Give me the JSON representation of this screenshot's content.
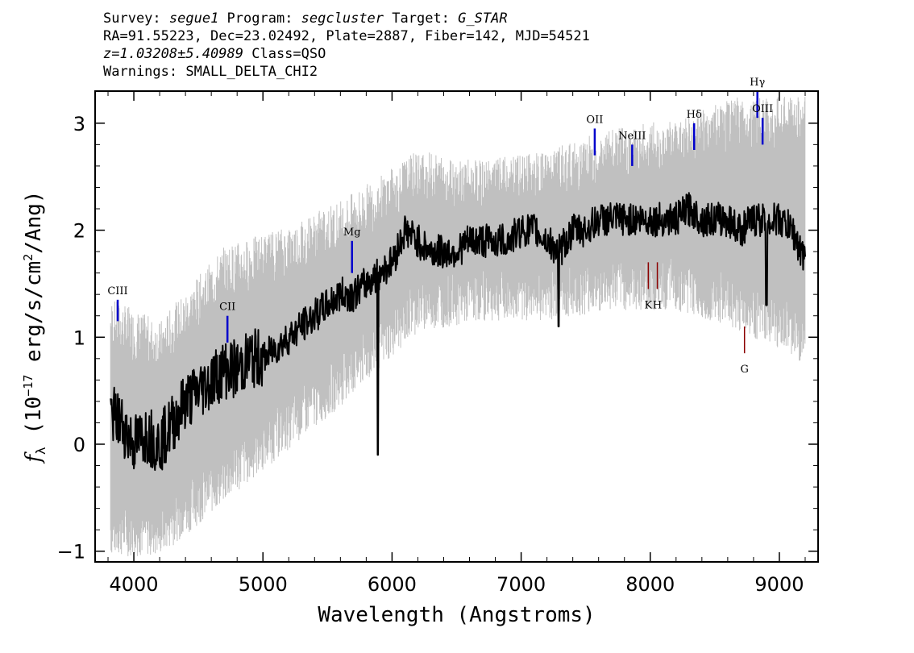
{
  "header": {
    "line1": {
      "survey_label": "Survey: ",
      "survey": "segue1",
      "program_label": " Program: ",
      "program": "segcluster",
      "target_label": " Target: ",
      "target": "G_STAR"
    },
    "line2": "RA=91.55223, Dec=23.02492, Plate=2887, Fiber=142, MJD=54521",
    "line3": {
      "z": "z=1.03208±5.40989",
      "class": " Class=QSO"
    },
    "line4": "Warnings: SMALL_DELTA_CHI2"
  },
  "chart_data": {
    "type": "line",
    "xlabel": "Wavelength (Angstroms)",
    "ylabel": "f_λ (10^-17 erg/s/cm^2/Ang)",
    "xlim": [
      3700,
      9300
    ],
    "ylim": [
      -1.1,
      3.3
    ],
    "xticks": [
      4000,
      5000,
      6000,
      7000,
      8000,
      9000
    ],
    "yticks": [
      -1,
      0,
      1,
      2,
      3
    ],
    "colors": {
      "flux": "#000000",
      "error_band": "#c0c0c0",
      "emission": "#0000cc",
      "absorption": "#8b0000"
    },
    "series": [
      {
        "x": [
          3820,
          3900,
          4000,
          4100,
          4200,
          4300,
          4400,
          4500,
          4600,
          4700,
          4800,
          4900,
          5000,
          5100,
          5200,
          5300,
          5400,
          5500,
          5600,
          5700,
          5800,
          5900,
          6000,
          6100,
          6200,
          6300,
          6400,
          6500,
          6600,
          6700,
          6800,
          6900,
          7000,
          7100,
          7200,
          7300,
          7400,
          7500,
          7600,
          7700,
          7800,
          7900,
          8000,
          8100,
          8200,
          8300,
          8400,
          8500,
          8600,
          8700,
          8800,
          8900,
          9000,
          9100,
          9200
        ],
        "y": [
          0.3,
          0.2,
          0.0,
          0.1,
          0.0,
          0.2,
          0.4,
          0.5,
          0.6,
          0.7,
          0.7,
          0.8,
          0.8,
          0.9,
          1.0,
          1.1,
          1.2,
          1.3,
          1.4,
          1.4,
          1.5,
          1.6,
          1.7,
          2.0,
          1.9,
          1.8,
          1.8,
          1.8,
          1.9,
          1.9,
          1.9,
          1.9,
          2.0,
          2.0,
          1.9,
          1.8,
          2.0,
          2.0,
          2.1,
          2.1,
          2.1,
          2.1,
          2.1,
          2.1,
          2.1,
          2.2,
          2.1,
          2.1,
          2.1,
          2.0,
          2.1,
          2.1,
          2.1,
          2.0,
          1.7
        ]
      }
    ],
    "error_band": [
      {
        "x": 3850,
        "low": -0.8,
        "high": 1.1
      },
      {
        "x": 4200,
        "low": -0.8,
        "high": 0.9
      },
      {
        "x": 4700,
        "low": -0.3,
        "high": 1.6
      },
      {
        "x": 5200,
        "low": 0.2,
        "high": 1.8
      },
      {
        "x": 5700,
        "low": 0.7,
        "high": 2.1
      },
      {
        "x": 6200,
        "low": 1.3,
        "high": 2.5
      },
      {
        "x": 6700,
        "low": 1.4,
        "high": 2.4
      },
      {
        "x": 7200,
        "low": 1.4,
        "high": 2.5
      },
      {
        "x": 7700,
        "low": 1.5,
        "high": 2.7
      },
      {
        "x": 8200,
        "low": 1.5,
        "high": 2.8
      },
      {
        "x": 8700,
        "low": 1.3,
        "high": 3.0
      },
      {
        "x": 9200,
        "low": 1.0,
        "high": 3.0
      }
    ],
    "dips": [
      {
        "x": 5890,
        "y": -0.1
      },
      {
        "x": 7290,
        "y": 1.1
      },
      {
        "x": 8900,
        "y": 1.3
      }
    ],
    "emission_lines": [
      {
        "label": "CIII",
        "x": 3875,
        "y0": 1.15,
        "y1": 1.35
      },
      {
        "label": "CII",
        "x": 4725,
        "y0": 0.95,
        "y1": 1.2
      },
      {
        "label": "Mg",
        "x": 5690,
        "y0": 1.6,
        "y1": 1.9
      },
      {
        "label": "OII",
        "x": 7570,
        "y0": 2.7,
        "y1": 2.95
      },
      {
        "label": "NeIII",
        "x": 7860,
        "y0": 2.6,
        "y1": 2.8
      },
      {
        "label": "Hδ",
        "x": 8340,
        "y0": 2.75,
        "y1": 3.0
      },
      {
        "label": "Hγ",
        "x": 8830,
        "y0": 3.05,
        "y1": 3.3
      },
      {
        "label": "OIII",
        "x": 8870,
        "y0": 2.8,
        "y1": 3.05
      }
    ],
    "absorption_lines": [
      {
        "label": "K",
        "x": 7985,
        "y0": 1.45,
        "y1": 1.7
      },
      {
        "label": "H",
        "x": 8055,
        "y0": 1.45,
        "y1": 1.7
      },
      {
        "label": "G",
        "x": 8730,
        "y0": 0.85,
        "y1": 1.1
      }
    ]
  }
}
